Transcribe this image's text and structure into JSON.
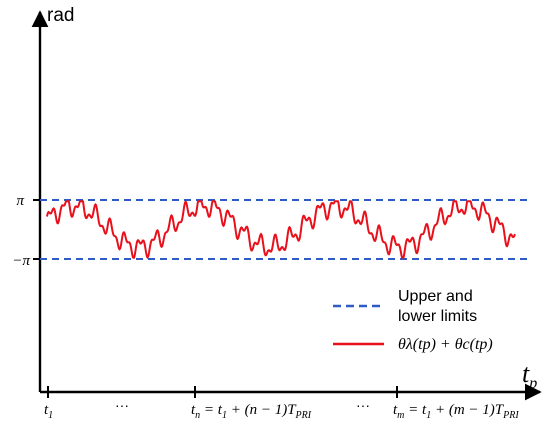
{
  "y_axis": {
    "label": "rad"
  },
  "x_axis": {
    "label": "t",
    "subscript": "p"
  },
  "y_ticks": [
    {
      "label": "π"
    },
    {
      "label": "−π"
    }
  ],
  "x_ticks": [
    {
      "main": "t",
      "sub": "1"
    },
    {
      "dots": "···"
    },
    {
      "main": "t",
      "sub": "n",
      "rest": " = t",
      "sub2": "1",
      "rest2": " + (n − 1)T",
      "sub3": "PRI"
    },
    {
      "dots": "···"
    },
    {
      "main": "t",
      "sub": "m",
      "rest": " = t",
      "sub2": "1",
      "rest2": " + (m − 1)T",
      "sub3": "PRI"
    }
  ],
  "legend": {
    "limits_label_line1": "Upper and",
    "limits_label_line2": "lower limits",
    "signal_label": "θλ(tp) + θc(tp)"
  },
  "colors": {
    "limits": "#2e5bc4",
    "signal": "#e8101a",
    "axis": "#000000"
  }
}
